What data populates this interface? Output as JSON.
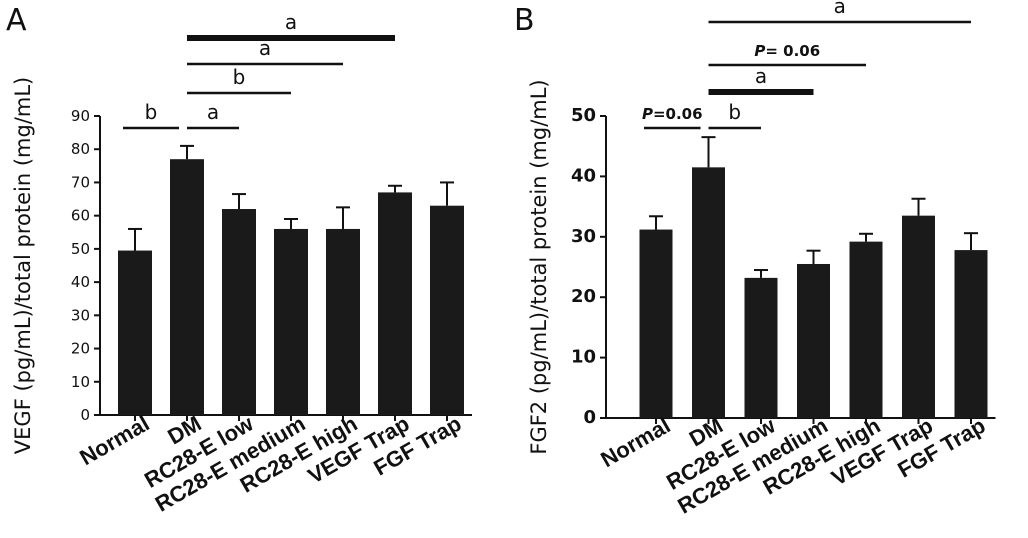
{
  "chart_data": [
    {
      "type": "bar",
      "panel": "A",
      "ylabel": "VEGF (pg/mL)/total protein (mg/mL)",
      "xlabel": "",
      "title": "",
      "categories": [
        "Normal",
        "DM",
        "RC28-E low",
        "RC28-E medium",
        "RC28-E high",
        "VEGF Trap",
        "FGF Trap"
      ],
      "values": [
        49.5,
        77,
        62,
        56,
        56,
        67,
        63
      ],
      "errors": [
        6.5,
        4,
        4.5,
        3,
        6.5,
        2,
        7
      ],
      "ylim": [
        0,
        90
      ],
      "yticks": [
        0,
        10,
        20,
        30,
        40,
        50,
        60,
        70,
        80,
        90
      ],
      "bar_color": "#1a1a1a",
      "significance": [
        {
          "from": "Normal",
          "to": "DM",
          "label": "b",
          "thick": false
        },
        {
          "from": "DM",
          "to": "RC28-E low",
          "label": "a",
          "thick": false
        },
        {
          "from": "DM",
          "to": "RC28-E medium",
          "label": "b",
          "thick": false
        },
        {
          "from": "DM",
          "to": "RC28-E high",
          "label": "a",
          "thick": false
        },
        {
          "from": "DM",
          "to": "VEGF Trap",
          "label": "a",
          "thick": true
        }
      ]
    },
    {
      "type": "bar",
      "panel": "B",
      "ylabel": "FGF2 (pg/mL)/total protein (mg/mL)",
      "xlabel": "",
      "title": "",
      "categories": [
        "Normal",
        "DM",
        "RC28-E low",
        "RC28-E medium",
        "RC28-E high",
        "VEGF Trap",
        "FGF Trap"
      ],
      "values": [
        31.2,
        41.5,
        23.2,
        25.5,
        29.2,
        33.5,
        27.8
      ],
      "errors": [
        2.2,
        5,
        1.3,
        2.2,
        1.3,
        2.8,
        2.8
      ],
      "ylim": [
        0,
        50
      ],
      "yticks": [
        0,
        10,
        20,
        30,
        40,
        50
      ],
      "bar_color": "#1a1a1a",
      "significance": [
        {
          "from": "Normal",
          "to": "DM",
          "label": "P=0.06",
          "thick": false
        },
        {
          "from": "DM",
          "to": "RC28-E low",
          "label": "b",
          "thick": false
        },
        {
          "from": "DM",
          "to": "RC28-E medium",
          "label": "a",
          "thick": true
        },
        {
          "from": "DM",
          "to": "RC28-E high",
          "label": "P= 0.06",
          "thick": false
        },
        {
          "from": "DM",
          "to": "FGF Trap",
          "label": "a",
          "thick": false
        }
      ]
    }
  ]
}
